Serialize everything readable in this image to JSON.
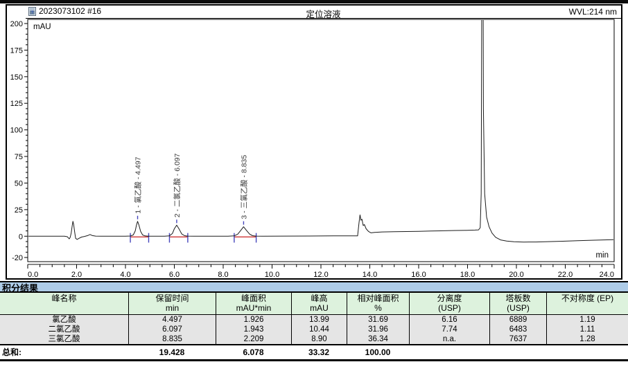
{
  "window": {
    "note": "cropped window title bar"
  },
  "chromatogram": {
    "sample_id": "2023073102 #16",
    "title": "定位溶液",
    "wavelength": "WVL:214 nm",
    "y_axis_unit": "mAU",
    "x_axis_unit": "min",
    "doc_icon": "document-icon"
  },
  "chart_data": {
    "type": "line",
    "title": "定位溶液",
    "xlabel": "min",
    "ylabel": "mAU",
    "xlim": [
      0.0,
      24.0
    ],
    "ylim": [
      -20,
      200
    ],
    "x_major_ticks": [
      "0.0",
      "2.0",
      "4.0",
      "6.0",
      "8.0",
      "10.0",
      "12.0",
      "14.0",
      "16.0",
      "18.0",
      "20.0",
      "22.0",
      "24.0"
    ],
    "y_major_ticks": [
      200,
      175,
      150,
      125,
      100,
      75,
      50,
      25,
      0,
      -20
    ],
    "x_minor_step": 0.5,
    "y_minor_step": 5,
    "grid": false,
    "legend": "none",
    "peak_labels": [
      {
        "text": "1 - 氯乙酸 - 4.497",
        "t": 4.497,
        "apex_mAU": 14.0
      },
      {
        "text": "2 - 二氯乙酸 - 6.097",
        "t": 6.097,
        "apex_mAU": 10.4
      },
      {
        "text": "3 - 三氯乙酸 - 8.835",
        "t": 8.835,
        "apex_mAU": 8.9
      }
    ],
    "integration_regions": [
      {
        "start": 4.2,
        "end": 4.95
      },
      {
        "start": 5.8,
        "end": 6.55
      },
      {
        "start": 8.45,
        "end": 9.35
      }
    ],
    "unlabeled_features": [
      {
        "t": 1.85,
        "apex_mAU": 14,
        "note": "injection front"
      },
      {
        "t": 13.6,
        "apex_mAU": 20,
        "note": "baseline disturbance, elevated baseline after"
      },
      {
        "t": 18.6,
        "apex_mAU": "off-scale (>200), clipped at top"
      }
    ],
    "trace": [
      [
        0,
        0
      ],
      [
        0.4,
        0
      ],
      [
        0.8,
        0
      ],
      [
        1.2,
        0
      ],
      [
        1.5,
        0
      ],
      [
        1.62,
        -0.5
      ],
      [
        1.7,
        -2.5
      ],
      [
        1.74,
        -1
      ],
      [
        1.78,
        3
      ],
      [
        1.82,
        10
      ],
      [
        1.85,
        14
      ],
      [
        1.88,
        11
      ],
      [
        1.92,
        4
      ],
      [
        1.96,
        -2
      ],
      [
        2.02,
        -3
      ],
      [
        2.1,
        -2
      ],
      [
        2.2,
        -0.8
      ],
      [
        2.32,
        -0.2
      ],
      [
        2.45,
        0.6
      ],
      [
        2.55,
        1.6
      ],
      [
        2.65,
        0.6
      ],
      [
        2.78,
        0.1
      ],
      [
        3.0,
        0
      ],
      [
        3.5,
        0
      ],
      [
        4.0,
        0
      ],
      [
        4.2,
        0.2
      ],
      [
        4.32,
        1.2
      ],
      [
        4.4,
        5
      ],
      [
        4.45,
        10.5
      ],
      [
        4.497,
        14
      ],
      [
        4.55,
        10.5
      ],
      [
        4.62,
        4.5
      ],
      [
        4.7,
        1.2
      ],
      [
        4.8,
        0.3
      ],
      [
        4.95,
        0
      ],
      [
        5.3,
        0
      ],
      [
        5.6,
        0
      ],
      [
        5.8,
        0.4
      ],
      [
        5.92,
        2.5
      ],
      [
        6.0,
        7
      ],
      [
        6.097,
        10.4
      ],
      [
        6.2,
        6.5
      ],
      [
        6.3,
        2.2
      ],
      [
        6.42,
        0.5
      ],
      [
        6.55,
        0.1
      ],
      [
        6.8,
        0
      ],
      [
        7.5,
        0
      ],
      [
        8.2,
        0
      ],
      [
        8.45,
        0.3
      ],
      [
        8.6,
        2
      ],
      [
        8.72,
        5.5
      ],
      [
        8.835,
        8.9
      ],
      [
        8.95,
        5.5
      ],
      [
        9.08,
        2
      ],
      [
        9.2,
        0.5
      ],
      [
        9.35,
        0.1
      ],
      [
        9.6,
        0
      ],
      [
        10.5,
        0.1
      ],
      [
        11.5,
        0.2
      ],
      [
        12.5,
        0.3
      ],
      [
        13.2,
        0.3
      ],
      [
        13.5,
        0.3
      ],
      [
        13.56,
        13
      ],
      [
        13.6,
        20
      ],
      [
        13.64,
        15
      ],
      [
        13.68,
        16
      ],
      [
        13.73,
        10
      ],
      [
        13.78,
        11
      ],
      [
        13.85,
        7
      ],
      [
        13.95,
        4.5
      ],
      [
        14.05,
        3.2
      ],
      [
        14.2,
        3.6
      ],
      [
        14.5,
        4.0
      ],
      [
        15.0,
        4.2
      ],
      [
        15.5,
        4.4
      ],
      [
        16.0,
        4.6
      ],
      [
        16.5,
        4.9
      ],
      [
        17.0,
        5.1
      ],
      [
        17.5,
        5.4
      ],
      [
        18.0,
        5.6
      ],
      [
        18.3,
        5.8
      ],
      [
        18.45,
        6.0
      ],
      [
        18.52,
        8
      ],
      [
        18.56,
        40
      ],
      [
        18.58,
        200
      ],
      [
        18.6,
        400
      ],
      [
        18.62,
        400
      ],
      [
        18.65,
        120
      ],
      [
        18.7,
        40
      ],
      [
        18.78,
        18
      ],
      [
        18.88,
        9
      ],
      [
        19.0,
        3
      ],
      [
        19.15,
        -1
      ],
      [
        19.35,
        -3.5
      ],
      [
        19.6,
        -4.6
      ],
      [
        19.9,
        -5.2
      ],
      [
        20.3,
        -5.5
      ],
      [
        20.8,
        -5.4
      ],
      [
        21.3,
        -5.1
      ],
      [
        21.9,
        -4.7
      ],
      [
        22.5,
        -4.2
      ],
      [
        23.2,
        -3.7
      ],
      [
        24,
        -3.2
      ]
    ]
  },
  "results_table": {
    "title": "积分结果",
    "columns": [
      {
        "label": "峰名称",
        "unit": ""
      },
      {
        "label": "保留时间",
        "unit": "min"
      },
      {
        "label": "峰面积",
        "unit": "mAU*min"
      },
      {
        "label": "峰高",
        "unit": "mAU"
      },
      {
        "label": "相对峰面积",
        "unit": "%"
      },
      {
        "label": "分离度",
        "unit": "(USP)"
      },
      {
        "label": "塔板数",
        "unit": "(USP)"
      },
      {
        "label": "不对称度 (EP)",
        "unit": ""
      }
    ],
    "rows": [
      [
        "氯乙酸",
        "4.497",
        "1.926",
        "13.99",
        "31.69",
        "6.16",
        "6889",
        "1.19"
      ],
      [
        "二氯乙酸",
        "6.097",
        "1.943",
        "10.44",
        "31.96",
        "7.74",
        "6483",
        "1.11"
      ],
      [
        "三氯乙酸",
        "8.835",
        "2.209",
        "8.90",
        "36.34",
        "n.a.",
        "7637",
        "1.28"
      ]
    ],
    "total_row": [
      "总和:",
      "19.428",
      "6.078",
      "33.32",
      "100.00",
      "",
      "",
      ""
    ]
  },
  "colors": {
    "curve": "#1a1a1a",
    "integration_tick": "#4444bb",
    "integration_baseline": "#cc3333",
    "peak_label_text": "#3a3a3a",
    "table_title_bg": "#aecce8",
    "table_header_bg": "#ddf2dd",
    "table_row_bg": "#e5e5e5",
    "axis_ruler": "#888888"
  }
}
